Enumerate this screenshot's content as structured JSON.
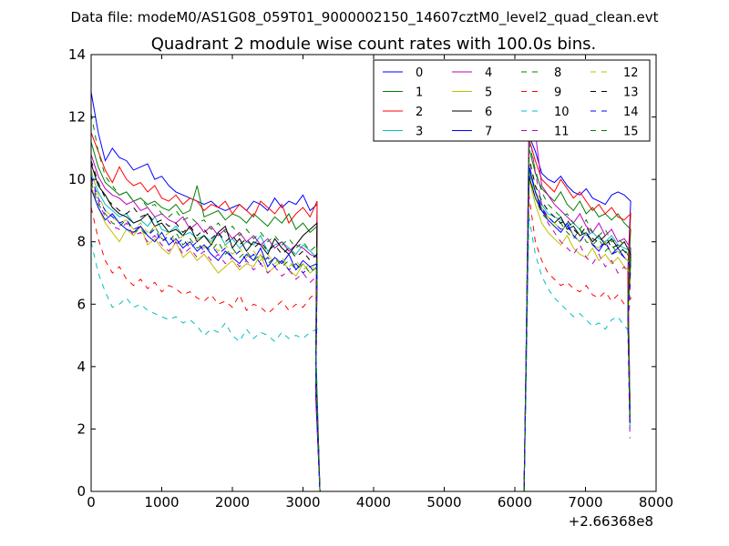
{
  "chart_data": {
    "type": "line",
    "suptitle": "Data file: modeM0/AS1G08_059T01_9000002150_14607cztM0_level2_quad_clean.evt",
    "title": "Quadrant 2 module wise count rates with 100.0s bins.",
    "xlabel": "",
    "ylabel": "",
    "x_offset_label": "+2.66368e8",
    "xlim": [
      0,
      8000
    ],
    "ylim": [
      0,
      14
    ],
    "x_ticks": [
      0,
      1000,
      2000,
      3000,
      4000,
      5000,
      6000,
      7000,
      8000
    ],
    "y_ticks": [
      0,
      2,
      4,
      6,
      8,
      10,
      12,
      14
    ],
    "x_tick_labels": [
      "0",
      "1000",
      "2000",
      "3000",
      "4000",
      "5000",
      "6000",
      "7000",
      "8000"
    ],
    "y_tick_labels": [
      "0",
      "2",
      "4",
      "6",
      "8",
      "10",
      "12",
      "14"
    ],
    "legend_position": "top-right",
    "series": [
      {
        "name": "0",
        "color": "#0000ff",
        "style": "solid",
        "seg1": [
          12.8,
          11.5,
          10.6,
          11.0,
          10.7,
          10.6,
          10.3,
          10.4,
          10.5,
          10.0,
          10.1,
          9.8,
          9.6,
          9.5,
          9.4,
          9.3,
          9.2,
          9.3,
          9.1,
          9.0,
          9.1,
          9.2,
          9.0,
          9.3,
          9.2,
          9.0,
          9.4,
          9.1,
          9.3,
          9.2,
          9.5,
          9.0,
          9.2
        ],
        "seg2": [
          11.4,
          10.9,
          10.2,
          10.0,
          9.9,
          10.1,
          9.8,
          9.6,
          9.5,
          9.7,
          9.4,
          9.3,
          9.2,
          9.5,
          9.6,
          9.5,
          9.3
        ]
      },
      {
        "name": "1",
        "color": "#008000",
        "style": "solid",
        "seg1": [
          11.2,
          10.4,
          9.9,
          9.7,
          9.5,
          9.6,
          9.3,
          9.4,
          9.2,
          9.3,
          9.1,
          9.0,
          9.2,
          8.9,
          9.0,
          9.8,
          8.8,
          8.9,
          9.0,
          8.7,
          8.9,
          8.8,
          8.6,
          8.9,
          8.7,
          8.5,
          8.8,
          8.6,
          8.9,
          8.4,
          8.6,
          8.3,
          8.5
        ],
        "seg2": [
          11.0,
          10.2,
          9.7,
          9.5,
          9.3,
          9.6,
          9.2,
          9.0,
          9.3,
          8.9,
          9.1,
          8.8,
          8.9,
          8.7,
          8.9,
          8.6,
          8.4
        ]
      },
      {
        "name": "2",
        "color": "#ff0000",
        "style": "solid",
        "seg1": [
          11.5,
          10.9,
          10.3,
          9.9,
          10.4,
          10.0,
          9.8,
          9.9,
          9.6,
          9.8,
          9.4,
          9.3,
          9.5,
          9.2,
          9.4,
          9.3,
          9.0,
          9.2,
          9.1,
          9.3,
          8.9,
          9.2,
          9.0,
          8.8,
          9.3,
          9.1,
          8.9,
          9.2,
          8.6,
          8.9,
          9.1,
          8.8,
          9.3
        ],
        "seg2": [
          11.3,
          10.6,
          10.0,
          9.8,
          9.6,
          10.0,
          9.7,
          9.4,
          9.6,
          9.3,
          9.0,
          9.2,
          8.9,
          9.1,
          8.8,
          8.7,
          8.9
        ]
      },
      {
        "name": "3",
        "color": "#00bfbf",
        "style": "solid",
        "seg1": [
          10.2,
          9.6,
          9.2,
          9.0,
          8.8,
          8.9,
          8.6,
          8.7,
          8.5,
          8.8,
          8.4,
          8.3,
          8.5,
          8.2,
          8.3,
          8.1,
          8.2,
          8.0,
          8.3,
          7.9,
          8.1,
          7.8,
          8.0,
          7.9,
          8.2,
          7.7,
          7.9,
          8.0,
          7.8,
          7.6,
          7.9,
          7.7,
          7.5
        ],
        "seg2": [
          10.3,
          9.6,
          9.2,
          8.9,
          8.8,
          8.7,
          8.5,
          8.6,
          8.4,
          8.2,
          8.3,
          8.1,
          8.0,
          8.2,
          7.9,
          7.8,
          7.7
        ]
      },
      {
        "name": "4",
        "color": "#bf00bf",
        "style": "solid",
        "seg1": [
          10.8,
          10.1,
          9.7,
          9.5,
          9.4,
          9.2,
          9.3,
          9.0,
          9.1,
          8.8,
          8.9,
          8.7,
          8.6,
          8.8,
          8.4,
          8.6,
          8.3,
          8.5,
          8.2,
          8.4,
          8.1,
          8.3,
          8.0,
          8.2,
          7.9,
          8.1,
          7.8,
          8.0,
          7.7,
          7.9,
          7.8,
          7.6,
          7.5
        ],
        "seg2": [
          11.7,
          11.5,
          9.8,
          9.5,
          9.2,
          9.0,
          8.8,
          8.6,
          8.9,
          8.5,
          8.3,
          8.6,
          8.2,
          8.4,
          8.0,
          8.1,
          7.8
        ]
      },
      {
        "name": "5",
        "color": "#bfbf00",
        "style": "solid",
        "seg1": [
          9.8,
          9.1,
          8.6,
          8.3,
          8.0,
          8.4,
          8.2,
          8.5,
          7.9,
          8.1,
          7.8,
          7.6,
          8.0,
          7.5,
          7.7,
          7.4,
          7.6,
          7.3,
          7.0,
          7.2,
          7.4,
          7.1,
          7.3,
          7.2,
          7.6,
          7.0,
          7.2,
          7.4,
          7.1,
          6.9,
          7.3,
          7.0,
          7.2
        ],
        "seg2": [
          10.0,
          9.2,
          8.6,
          8.3,
          8.1,
          7.9,
          8.2,
          7.8,
          7.6,
          7.5,
          7.8,
          7.4,
          7.6,
          7.3,
          7.5,
          7.2,
          7.0
        ]
      },
      {
        "name": "6",
        "color": "#000000",
        "style": "solid",
        "seg1": [
          10.5,
          9.8,
          9.5,
          9.1,
          8.9,
          8.8,
          8.6,
          8.7,
          8.9,
          8.5,
          8.6,
          8.3,
          8.4,
          8.2,
          8.5,
          8.0,
          8.2,
          7.9,
          8.3,
          8.5,
          7.8,
          8.1,
          7.7,
          8.0,
          7.9,
          7.6,
          8.1,
          7.8,
          7.6,
          7.9,
          8.2,
          8.4,
          8.6
        ],
        "seg2": [
          10.1,
          9.4,
          9.0,
          8.8,
          8.6,
          8.8,
          8.4,
          8.5,
          8.2,
          8.3,
          8.0,
          8.2,
          7.9,
          8.1,
          7.8,
          8.0,
          7.6
        ]
      },
      {
        "name": "7",
        "color": "#0000ff",
        "style": "solid",
        "seg1": [
          9.7,
          9.1,
          8.7,
          8.9,
          8.6,
          8.4,
          8.3,
          8.5,
          8.2,
          8.0,
          8.3,
          7.9,
          8.1,
          7.8,
          8.0,
          7.7,
          7.9,
          7.6,
          7.4,
          7.7,
          7.5,
          7.3,
          7.6,
          7.4,
          7.8,
          7.2,
          7.5,
          7.3,
          7.6,
          7.1,
          7.4,
          7.2,
          7.3
        ],
        "seg2": [
          10.4,
          9.6,
          9.0,
          8.7,
          8.5,
          8.3,
          8.6,
          8.2,
          8.0,
          8.3,
          7.9,
          7.7,
          8.0,
          7.6,
          7.8,
          7.5,
          7.3
        ]
      },
      {
        "name": "8",
        "color": "#008000",
        "style": "dashed",
        "seg1": [
          9.9,
          9.2,
          8.9,
          8.6,
          8.5,
          8.7,
          8.3,
          8.4,
          8.2,
          8.5,
          8.1,
          8.0,
          8.3,
          7.9,
          8.1,
          7.8,
          7.9,
          7.7,
          8.0,
          7.6,
          7.8,
          7.5,
          7.7,
          7.4,
          7.6,
          7.3,
          7.5,
          7.2,
          7.4,
          7.1,
          7.3,
          7.0,
          7.2
        ],
        "seg2": [
          10.2,
          9.4,
          8.9,
          8.7,
          8.5,
          8.6,
          8.3,
          8.1,
          8.4,
          8.0,
          7.9,
          8.1,
          7.7,
          7.9,
          7.6,
          7.8,
          7.4
        ]
      },
      {
        "name": "9",
        "color": "#ff0000",
        "style": "dashed",
        "seg1": [
          9.1,
          8.1,
          7.4,
          7.0,
          7.2,
          6.8,
          6.6,
          6.8,
          6.5,
          6.7,
          6.4,
          6.6,
          6.5,
          6.3,
          6.4,
          6.2,
          6.1,
          6.3,
          6.0,
          6.1,
          5.9,
          6.3,
          5.8,
          6.0,
          5.9,
          5.7,
          5.9,
          6.1,
          5.8,
          6.0,
          5.9,
          6.2,
          6.4
        ],
        "seg2": [
          9.5,
          8.0,
          7.4,
          7.0,
          6.8,
          6.6,
          6.7,
          6.5,
          6.4,
          6.6,
          6.3,
          6.2,
          6.4,
          6.1,
          6.3,
          6.0,
          6.2
        ]
      },
      {
        "name": "10",
        "color": "#00bfbf",
        "style": "dashed",
        "seg1": [
          8.0,
          7.0,
          6.4,
          5.9,
          6.0,
          6.2,
          5.9,
          6.0,
          5.8,
          5.7,
          5.6,
          5.5,
          5.6,
          5.4,
          5.5,
          5.3,
          5.0,
          5.2,
          5.1,
          5.4,
          5.0,
          4.8,
          5.2,
          4.9,
          5.1,
          5.0,
          4.8,
          5.1,
          4.9,
          5.0,
          4.9,
          5.1,
          5.2
        ],
        "seg2": [
          8.8,
          7.6,
          6.9,
          6.5,
          6.2,
          6.0,
          5.8,
          5.6,
          5.7,
          5.5,
          5.3,
          5.4,
          5.2,
          5.5,
          5.6,
          5.3,
          5.1
        ]
      },
      {
        "name": "11",
        "color": "#bf00bf",
        "style": "dashed",
        "seg1": [
          10.0,
          9.3,
          8.8,
          8.5,
          8.4,
          8.6,
          8.2,
          8.3,
          8.0,
          8.2,
          7.9,
          7.7,
          8.0,
          7.6,
          7.8,
          7.5,
          7.7,
          7.4,
          7.6,
          7.3,
          7.5,
          7.2,
          7.4,
          7.1,
          7.3,
          7.0,
          7.2,
          6.9,
          7.1,
          6.8,
          7.0,
          6.7,
          6.9
        ],
        "seg2": [
          11.6,
          10.2,
          9.2,
          8.6,
          8.3,
          8.0,
          7.8,
          7.6,
          7.9,
          7.5,
          7.3,
          7.6,
          7.2,
          7.4,
          7.0,
          7.2,
          6.8
        ]
      },
      {
        "name": "12",
        "color": "#bfbf00",
        "style": "dashed",
        "seg1": [
          10.3,
          9.5,
          9.0,
          8.8,
          8.6,
          8.7,
          8.4,
          8.6,
          8.3,
          8.5,
          8.1,
          8.3,
          8.0,
          8.2,
          7.9,
          8.1,
          7.8,
          8.0,
          7.7,
          7.9,
          7.6,
          7.8,
          7.5,
          7.7,
          7.4,
          7.6,
          7.3,
          7.5,
          7.2,
          7.4,
          7.1,
          7.3,
          7.0
        ],
        "seg2": [
          10.6,
          9.7,
          9.1,
          8.8,
          8.6,
          8.4,
          8.5,
          8.2,
          8.0,
          8.3,
          7.9,
          7.8,
          8.0,
          7.6,
          7.7,
          7.5,
          7.3
        ]
      },
      {
        "name": "13",
        "color": "#000000",
        "style": "dashed",
        "seg1": [
          10.6,
          9.9,
          9.4,
          9.2,
          9.0,
          8.9,
          9.1,
          8.8,
          8.9,
          8.6,
          8.7,
          8.5,
          8.6,
          8.3,
          8.5,
          8.2,
          8.4,
          8.1,
          8.3,
          8.0,
          8.2,
          7.9,
          8.1,
          7.8,
          8.0,
          7.7,
          7.9,
          7.6,
          7.8,
          7.5,
          7.7,
          7.4,
          7.6
        ],
        "seg2": [
          10.7,
          9.8,
          9.3,
          9.0,
          8.8,
          8.6,
          8.7,
          8.4,
          8.2,
          8.5,
          8.1,
          8.0,
          8.2,
          7.8,
          7.9,
          7.7,
          7.5
        ]
      },
      {
        "name": "14",
        "color": "#0000ff",
        "style": "dashed",
        "seg1": [
          10.1,
          9.4,
          9.0,
          8.8,
          8.6,
          8.7,
          8.4,
          8.5,
          8.2,
          8.4,
          8.0,
          8.2,
          7.9,
          8.1,
          7.8,
          8.0,
          7.7,
          7.9,
          7.6,
          7.8,
          7.5,
          7.7,
          7.4,
          7.6,
          7.3,
          7.5,
          7.2,
          7.4,
          7.1,
          7.3,
          7.0,
          7.2,
          6.9
        ],
        "seg2": [
          10.5,
          9.6,
          9.1,
          8.8,
          8.6,
          8.4,
          8.5,
          8.2,
          8.0,
          8.3,
          7.9,
          7.8,
          8.0,
          7.6,
          7.7,
          7.5,
          7.2
        ]
      },
      {
        "name": "15",
        "color": "#008000",
        "style": "dashed",
        "seg1": [
          12.1,
          10.9,
          10.1,
          9.8,
          9.5,
          9.6,
          9.3,
          9.4,
          9.1,
          9.2,
          8.9,
          8.8,
          9.0,
          8.7,
          8.8,
          8.6,
          8.7,
          8.4,
          8.6,
          8.3,
          8.5,
          8.2,
          8.4,
          8.1,
          8.3,
          8.0,
          8.2,
          7.9,
          8.1,
          7.8,
          8.0,
          7.7,
          7.9
        ],
        "seg2": [
          11.2,
          10.3,
          9.6,
          9.2,
          9.0,
          8.8,
          8.9,
          8.6,
          8.4,
          8.7,
          8.3,
          8.2,
          8.4,
          8.0,
          8.1,
          7.9,
          7.7
        ]
      }
    ],
    "segment_times": {
      "seg1_start": 0,
      "seg1_step": 100,
      "seg2_start": 6200,
      "seg2_step": 90
    },
    "gap_times": [
      3180,
      3240,
      6130,
      6160
    ],
    "end_times": [
      7600,
      7630
    ],
    "end_values": [
      2.8,
      2.5,
      2.9,
      2.0,
      2.2,
      2.3,
      2.4,
      2.6,
      2.7,
      3.0,
      3.2,
      1.7,
      2.5,
      2.2,
      2.1,
      2.3
    ],
    "drop_values": [
      4.5,
      3.5,
      4.0,
      3.2,
      3.0,
      3.8,
      4.2,
      3.4,
      3.6,
      4.4,
      4.9,
      3.1,
      3.7,
      4.0,
      3.3,
      4.1
    ]
  }
}
